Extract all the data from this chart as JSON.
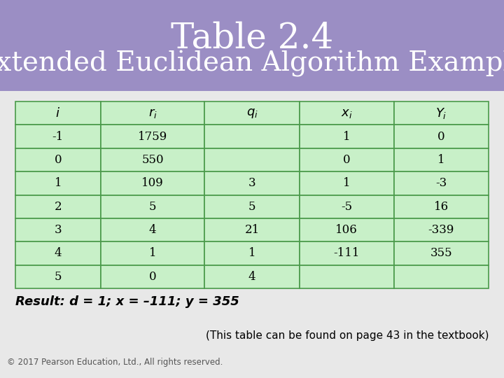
{
  "title_line1": "Table 2.4",
  "title_line2": "Extended Euclidean Algorithm Example",
  "header_bg": "#9b8ec4",
  "header_text_color": "#ffffff",
  "table_bg": "#c8f0c8",
  "table_border": "#4a9a4a",
  "outer_bg": "#c8c0d8",
  "body_bg": "#e8e8e8",
  "columns": [
    "i",
    "r_i",
    "q_i",
    "x_i",
    "Y_i"
  ],
  "col_labels_italic": [
    true,
    true,
    true,
    true,
    true
  ],
  "rows": [
    [
      "-1",
      "1759",
      "",
      "1",
      "0"
    ],
    [
      "0",
      "550",
      "",
      "0",
      "1"
    ],
    [
      "1",
      "109",
      "3",
      "1",
      "-3"
    ],
    [
      "2",
      "5",
      "5",
      "-5",
      "16"
    ],
    [
      "3",
      "4",
      "21",
      "106",
      "-339"
    ],
    [
      "4",
      "1",
      "1",
      "-111",
      "355"
    ],
    [
      "5",
      "0",
      "4",
      "",
      ""
    ]
  ],
  "result_text": "Result: d = 1; x = –111; y = 355",
  "footnote": "(This table can be found on page 43 in the textbook)",
  "copyright": "© 2017 Pearson Education, Ltd., All rights reserved."
}
